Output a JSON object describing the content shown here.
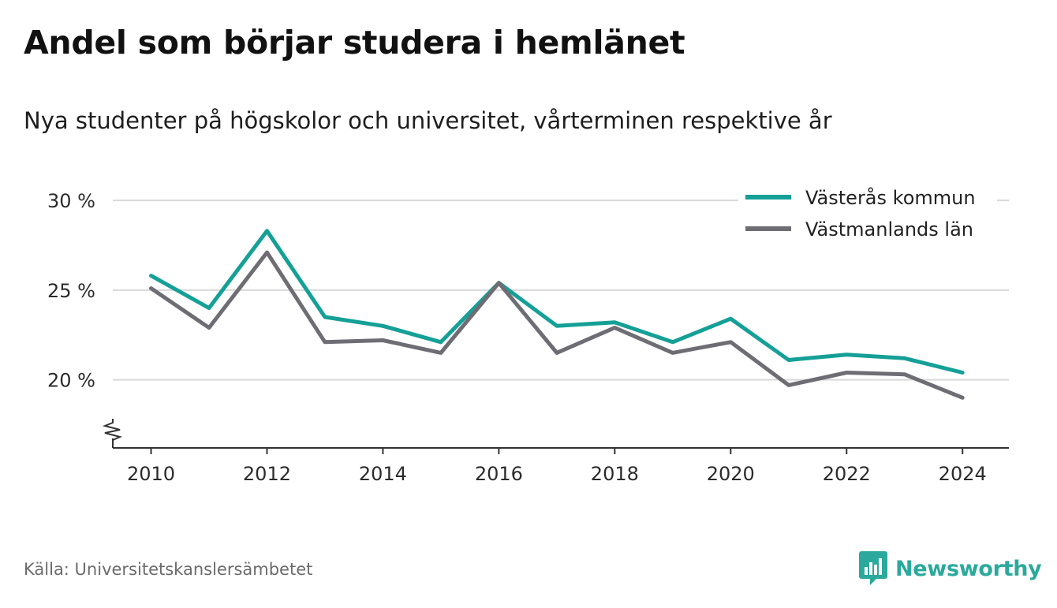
{
  "header": {
    "title": "Andel som börjar studera i hemlänet",
    "subtitle": "Nya studenter på högskolor och universitet, vårterminen respektive år"
  },
  "footer": {
    "source": "Källa: Universitetskanslersämbetet",
    "brand": "Newsworthy"
  },
  "icons": {
    "brand_logo": "newsworthy-logo-icon",
    "axis_break": "axis-break-icon"
  },
  "colors": {
    "series_1": "#15a097",
    "series_2": "#6e6d74",
    "brand": "#2aa99c",
    "grid": "#d9d9d9",
    "axis": "#333333"
  },
  "chart_data": {
    "type": "line",
    "x": [
      2010,
      2011,
      2012,
      2013,
      2014,
      2015,
      2016,
      2017,
      2018,
      2019,
      2020,
      2021,
      2022,
      2023,
      2024
    ],
    "series": [
      {
        "name": "Västerås kommun",
        "values": [
          25.8,
          24.0,
          28.3,
          23.5,
          23.0,
          22.1,
          25.4,
          23.0,
          23.2,
          22.1,
          23.4,
          21.1,
          21.4,
          21.2,
          20.4
        ]
      },
      {
        "name": "Västmanlands län",
        "values": [
          25.1,
          22.9,
          27.1,
          22.1,
          22.2,
          21.5,
          25.4,
          21.5,
          22.9,
          21.5,
          22.1,
          19.7,
          20.4,
          20.3,
          19.0
        ]
      }
    ],
    "yticks": [
      20,
      25,
      30
    ],
    "ytick_labels": [
      "20 %",
      "25 %",
      "30 %"
    ],
    "xticks": [
      2010,
      2012,
      2014,
      2016,
      2018,
      2020,
      2022,
      2024
    ],
    "xtick_labels": [
      "2010",
      "2012",
      "2014",
      "2016",
      "2018",
      "2020",
      "2022",
      "2024"
    ],
    "ylim": [
      16.2,
      30.4
    ],
    "xlim": [
      2009.34,
      2024.8
    ],
    "axis_break": true,
    "grid": "horizontal",
    "legend_position": "top-right",
    "xlabel": "",
    "ylabel": ""
  }
}
